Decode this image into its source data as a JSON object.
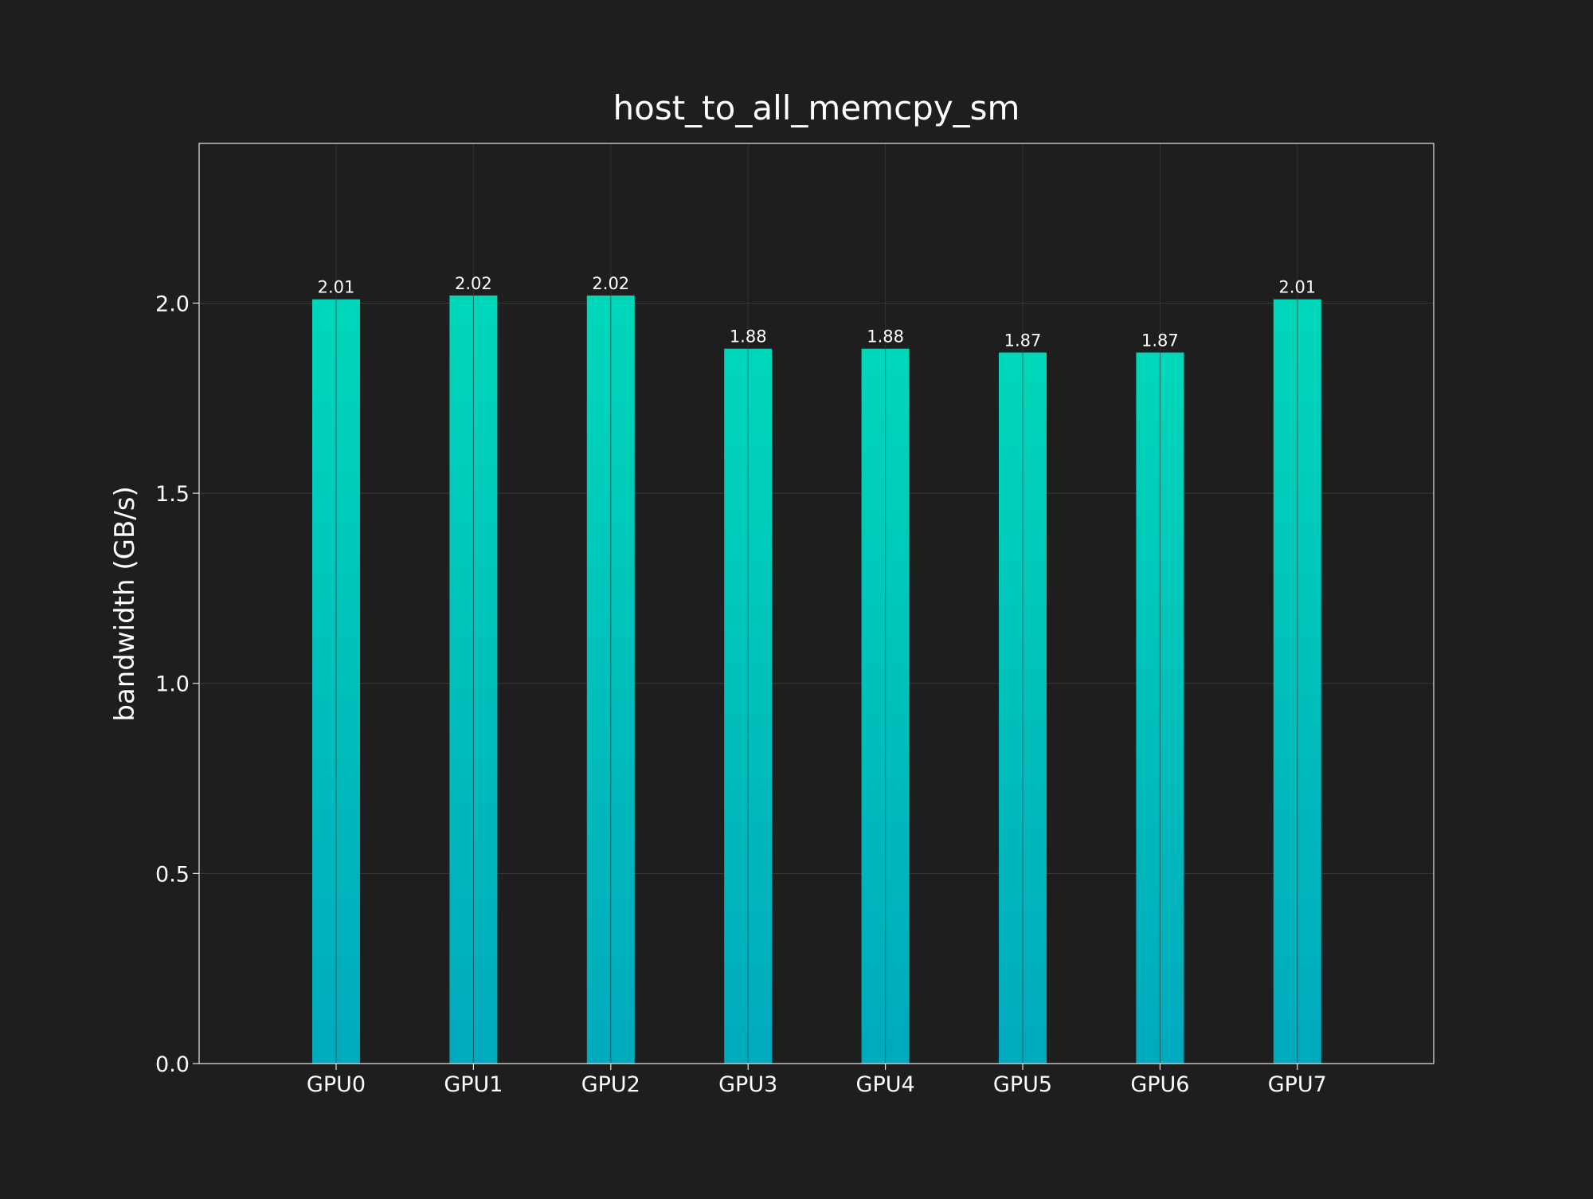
{
  "chart_data": {
    "type": "bar",
    "title": "host_to_all_memcpy_sm",
    "xlabel": "",
    "ylabel": "bandwidth (GB/s)",
    "categories": [
      "GPU0",
      "GPU1",
      "GPU2",
      "GPU3",
      "GPU4",
      "GPU5",
      "GPU6",
      "GPU7"
    ],
    "values": [
      2.01,
      2.02,
      2.02,
      1.88,
      1.88,
      1.87,
      1.87,
      2.01
    ],
    "value_labels": [
      "2.01",
      "2.02",
      "2.02",
      "1.88",
      "1.88",
      "1.87",
      "1.87",
      "2.01"
    ],
    "ylim": [
      0,
      2.42
    ],
    "yticks": [
      0.0,
      0.5,
      1.0,
      1.5,
      2.0
    ],
    "ytick_labels": [
      "0.0",
      "0.5",
      "1.0",
      "1.5",
      "2.0"
    ],
    "grid": true,
    "legend": "none"
  },
  "colors": {
    "background": "#1e1e1e",
    "bar_top": "#00d7b9",
    "bar_bottom": "#00a9bd",
    "grid": "#3a3a3a",
    "axes": "#e6e6e6",
    "text": "#ffffff"
  }
}
